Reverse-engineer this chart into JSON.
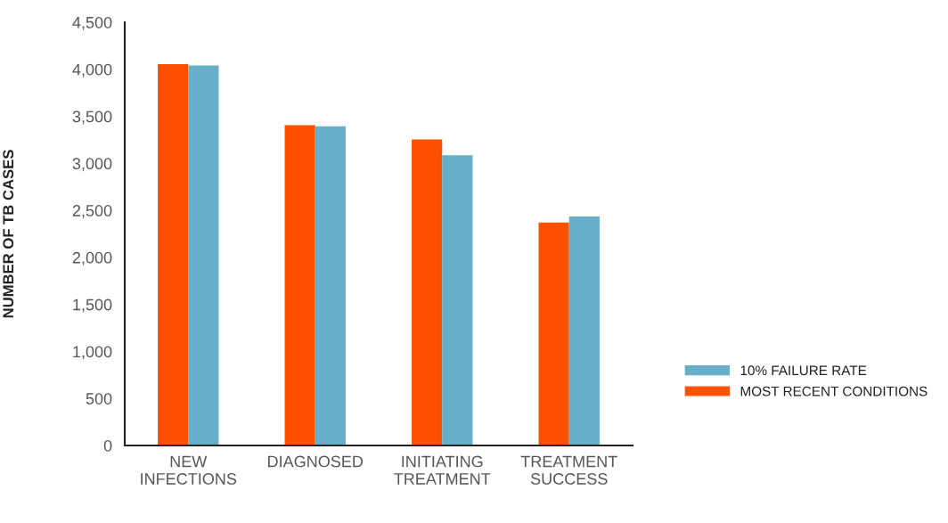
{
  "chart_data": {
    "type": "bar",
    "ylabel": "NUMBER OF TB CASES",
    "categories": [
      "NEW INFECTIONS",
      "DIAGNOSED",
      "INITIATING TREATMENT",
      "TREATMENT SUCCESS"
    ],
    "series": [
      {
        "name": "MOST RECENT CONDITIONS",
        "color": "#ff5000",
        "values": [
          4055,
          3405,
          3255,
          2370
        ]
      },
      {
        "name": "10% FAILURE RATE",
        "color": "#67afc8",
        "values": [
          4040,
          3395,
          3085,
          2435
        ]
      }
    ],
    "ylim": [
      0,
      4500
    ],
    "yticks": [
      {
        "value": 0,
        "label": "0"
      },
      {
        "value": 500,
        "label": "500"
      },
      {
        "value": 1000,
        "label": "1,000"
      },
      {
        "value": 1500,
        "label": "1,500"
      },
      {
        "value": 2000,
        "label": "2,000"
      },
      {
        "value": 2500,
        "label": "2,500"
      },
      {
        "value": 3000,
        "label": "3,000"
      },
      {
        "value": 3500,
        "label": "3,500"
      },
      {
        "value": 4000,
        "label": "4,000"
      },
      {
        "value": 4500,
        "label": "4,500"
      }
    ],
    "grid": false,
    "legend": "right"
  }
}
